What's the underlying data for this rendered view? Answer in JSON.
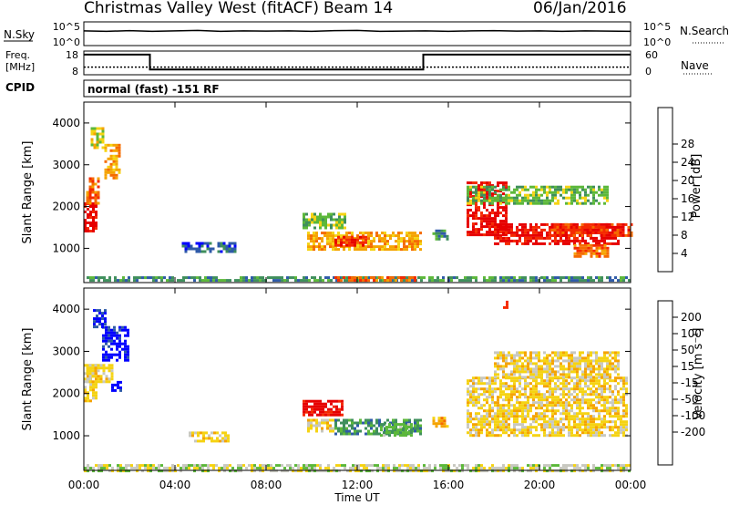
{
  "header": {
    "title": "Christmas Valley West (fitACF)",
    "beam": "Beam 14",
    "date": "06/Jan/2016"
  },
  "strip_labels": {
    "nsky": "N.Sky",
    "nsky_top": "10^5",
    "nsky_bot": "10^0",
    "nsearch": "N.Search",
    "nsearch_top": "10^5",
    "nsearch_bot": "10^0",
    "freq_label_1": "Freq.",
    "freq_label_2": "[MHz]",
    "freq_top": "18",
    "freq_bot": "8",
    "nave_label": "Nave",
    "nave_top": "60",
    "nave_bot": "0",
    "cpid_label": "CPID",
    "cpid_text": "normal (fast) -151 RF"
  },
  "colors": {
    "power": [
      "#0000ff",
      "#2e5aa8",
      "#3f8f5c",
      "#5cb83a",
      "#f5d313",
      "#f5a300",
      "#f56b00",
      "#f52a00",
      "#e60000"
    ],
    "velocity": [
      "#e60000",
      "#f52a00",
      "#f56b00",
      "#f5a300",
      "#f5d313",
      "#c8c8c0",
      "#5cb83a",
      "#3f8f5c",
      "#2e5aa8",
      "#0000ff"
    ],
    "ground": "#c0c0b8"
  },
  "chart_data": [
    {
      "type": "heatmap",
      "panel": "power",
      "ylabel": "Slant Range [km]",
      "xlim_hours": [
        0,
        24
      ],
      "ylim_km": [
        180,
        4500
      ],
      "yticks": [
        "1000",
        "2000",
        "3000",
        "4000"
      ],
      "colorbar": {
        "label": "Power [dB]",
        "ticks": [
          "4",
          "8",
          "12",
          "16",
          "20",
          "24",
          "28"
        ]
      },
      "regions": [
        {
          "t": [
            0.0,
            0.5
          ],
          "r": [
            1400,
            2100
          ],
          "level": 8
        },
        {
          "t": [
            0.1,
            0.7
          ],
          "r": [
            2100,
            2700
          ],
          "level": 6
        },
        {
          "t": [
            0.3,
            0.9
          ],
          "r": [
            3400,
            3900
          ],
          "level": 4
        },
        {
          "t": [
            0.9,
            1.6
          ],
          "r": [
            2700,
            3500
          ],
          "level": 5
        },
        {
          "t": [
            4.3,
            6.6
          ],
          "r": [
            900,
            1150
          ],
          "level": 1
        },
        {
          "t": [
            9.6,
            11.5
          ],
          "r": [
            1500,
            1850
          ],
          "level": 3
        },
        {
          "t": [
            9.8,
            14.8
          ],
          "r": [
            1000,
            1400
          ],
          "level": 5
        },
        {
          "t": [
            11.0,
            12.4
          ],
          "r": [
            1100,
            1300
          ],
          "level": 7
        },
        {
          "t": [
            15.3,
            16.0
          ],
          "r": [
            1250,
            1450
          ],
          "level": 2
        },
        {
          "t": [
            16.8,
            18.6
          ],
          "r": [
            1300,
            2600
          ],
          "level": 8
        },
        {
          "t": [
            18.0,
            23.5
          ],
          "r": [
            1100,
            1600
          ],
          "level": 8
        },
        {
          "t": [
            20.5,
            24.0
          ],
          "r": [
            1300,
            1600
          ],
          "level": 7
        },
        {
          "t": [
            21.5,
            23.0
          ],
          "r": [
            800,
            1100
          ],
          "level": 6
        },
        {
          "t": [
            16.8,
            23.0
          ],
          "r": [
            2100,
            2500
          ],
          "level": 3
        },
        {
          "t": [
            0.0,
            24.0
          ],
          "r": [
            200,
            330
          ],
          "level": 2
        },
        {
          "t": [
            11.0,
            14.5
          ],
          "r": [
            200,
            330
          ],
          "level": 6
        }
      ]
    },
    {
      "type": "heatmap",
      "panel": "velocity",
      "xlabel": "Time UT",
      "xticks": [
        "00:00",
        "04:00",
        "08:00",
        "12:00",
        "16:00",
        "20:00",
        "00:00"
      ],
      "ylabel": "Slant Range [km]",
      "xlim_hours": [
        0,
        24
      ],
      "ylim_km": [
        180,
        4500
      ],
      "yticks": [
        "1000",
        "2000",
        "3000",
        "4000"
      ],
      "colorbar": {
        "label": "Velocity [m s⁻¹]",
        "ticks": [
          "200",
          "100",
          "50",
          "15",
          "-15",
          "-50",
          "-100",
          "-200"
        ]
      },
      "regions": [
        {
          "t": [
            0.0,
            0.6
          ],
          "r": [
            1800,
            2700
          ],
          "level": 5
        },
        {
          "t": [
            0.8,
            2.0
          ],
          "r": [
            2800,
            3600
          ],
          "level": 0
        },
        {
          "t": [
            0.4,
            0.9
          ],
          "r": [
            3600,
            4000
          ],
          "level": 0
        },
        {
          "t": [
            1.2,
            1.6
          ],
          "r": [
            2100,
            2300
          ],
          "level": 0
        },
        {
          "t": [
            0.1,
            1.2
          ],
          "r": [
            2300,
            2700
          ],
          "level": 5
        },
        {
          "t": [
            9.6,
            11.4
          ],
          "r": [
            1500,
            1850
          ],
          "level": 9
        },
        {
          "t": [
            9.8,
            11.0
          ],
          "r": [
            1100,
            1400
          ],
          "level": 5
        },
        {
          "t": [
            11.0,
            14.8
          ],
          "r": [
            1050,
            1400
          ],
          "level": 2
        },
        {
          "t": [
            13.0,
            14.4
          ],
          "r": [
            1000,
            1300
          ],
          "level": 3
        },
        {
          "t": [
            15.3,
            16.0
          ],
          "r": [
            1250,
            1450
          ],
          "level": 6
        },
        {
          "t": [
            16.8,
            23.8
          ],
          "r": [
            1000,
            2400
          ],
          "level": 5
        },
        {
          "t": [
            18.0,
            23.5
          ],
          "r": [
            2400,
            3000
          ],
          "level": 5
        },
        {
          "t": [
            18.4,
            18.6
          ],
          "r": [
            4050,
            4200
          ],
          "level": 8
        },
        {
          "t": [
            0.0,
            24.0
          ],
          "r": [
            200,
            330
          ],
          "level": 4
        },
        {
          "t": [
            4.6,
            6.4
          ],
          "r": [
            900,
            1100
          ],
          "level": 5
        }
      ]
    }
  ],
  "strips": {
    "nsky_series": [
      0.62,
      0.6,
      0.63,
      0.6,
      0.62,
      0.64,
      0.6,
      0.62,
      0.61,
      0.62,
      0.6,
      0.63,
      0.64,
      0.6,
      0.61,
      0.62,
      0.6,
      0.62,
      0.63,
      0.61,
      0.62,
      0.6,
      0.62,
      0.61,
      0.6
    ],
    "freq_steps": [
      {
        "t": [
          0.0,
          2.9
        ],
        "mhz": 16.5
      },
      {
        "t": [
          2.9,
          14.9
        ],
        "mhz": 10.2
      },
      {
        "t": [
          14.9,
          24.0
        ],
        "mhz": 16.5
      }
    ],
    "nave_level": 0.32
  }
}
